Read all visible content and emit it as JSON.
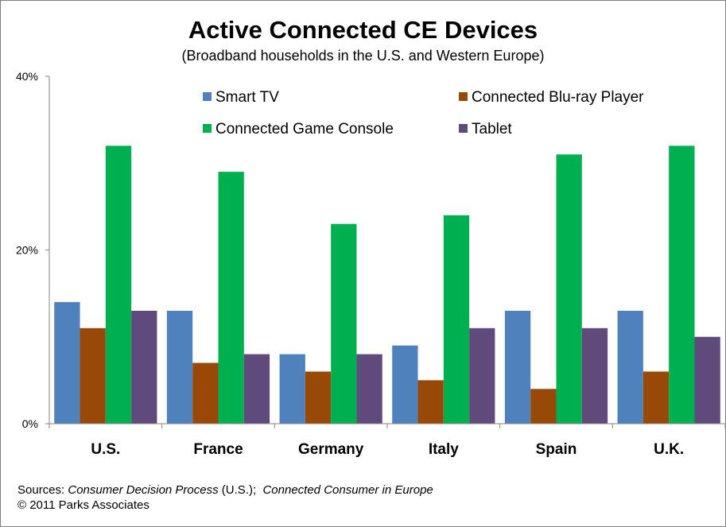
{
  "chart_data": {
    "type": "bar",
    "title": "Active Connected CE Devices",
    "subtitle": "(Broadband households in the U.S. and Western Europe)",
    "categories": [
      "U.S.",
      "France",
      "Germany",
      "Italy",
      "Spain",
      "U.K."
    ],
    "series": [
      {
        "name": "Smart TV",
        "color": "#4f81bd",
        "values": [
          14,
          13,
          8,
          9,
          13,
          13
        ]
      },
      {
        "name": "Connected Blu-ray Player",
        "color": "#984807",
        "values": [
          11,
          7,
          6,
          5,
          4,
          6
        ]
      },
      {
        "name": "Connected Game Console",
        "color": "#00b050",
        "values": [
          32,
          29,
          23,
          24,
          31,
          32
        ]
      },
      {
        "name": "Tablet",
        "color": "#604a7b",
        "values": [
          13,
          8,
          8,
          11,
          11,
          10
        ]
      }
    ],
    "ylim": [
      0,
      40
    ],
    "yticks": [
      0,
      20,
      40
    ],
    "ytick_labels": [
      "0%",
      "20%",
      "40%"
    ],
    "xlabel": "",
    "ylabel": "",
    "legend_position": "top-inside",
    "grid": false
  },
  "footer": {
    "sources_prefix": "Sources: ",
    "sources_us": "Consumer Decision Process",
    "sources_mid": " (U.S.);  ",
    "sources_europe": "Connected Consumer in Europe",
    "copyright": "© 2011 Parks Associates"
  }
}
